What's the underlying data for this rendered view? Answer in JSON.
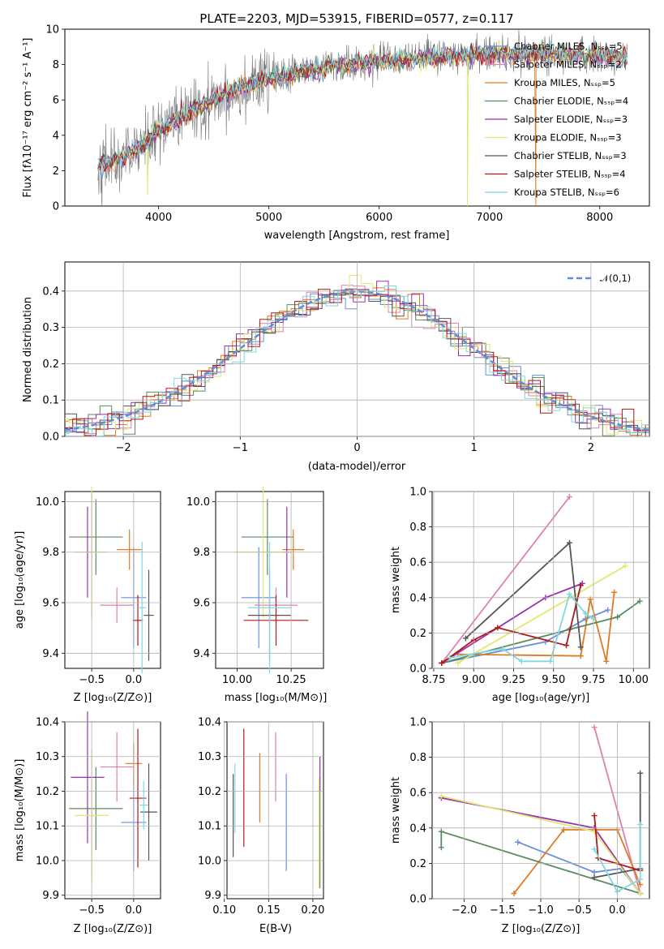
{
  "figure": {
    "title": "PLATE=2203, MJD=53915, FIBERID=0577, z=0.117"
  },
  "model_colors": {
    "Chabrier MILES": "#6a8fd8",
    "Salpeter MILES": "#e080b0",
    "Kroupa MILES": "#e07a20",
    "Chabrier ELODIE": "#5a8a60",
    "Salpeter ELODIE": "#9a30b0",
    "Kroupa ELODIE": "#e0e870",
    "Chabrier STELIB": "#555555",
    "Salpeter STELIB": "#b01818",
    "Kroupa STELIB": "#80d8e0"
  },
  "chart_data": [
    {
      "id": "spectrum",
      "type": "line",
      "title": "PLATE=2203, MJD=53915, FIBERID=0577, z=0.117",
      "xlabel": "wavelength [Angstrom, rest frame]",
      "ylabel": "Flux [fλ10⁻¹⁷ erg cm⁻² s⁻¹ A⁻¹]",
      "xlim": [
        3150,
        8450
      ],
      "ylim": [
        0,
        10
      ],
      "xticks": [
        4000,
        5000,
        6000,
        7000,
        8000
      ],
      "yticks": [
        0,
        2,
        4,
        6,
        8,
        10
      ],
      "legend_position": "top-right",
      "legend": [
        "Chabrier MILES, Nₛₛₚ=5",
        "Salpeter MILES, Nₛₛₚ=2",
        "Kroupa MILES, Nₛₛₚ=5",
        "Chabrier ELODIE, Nₛₛₚ=4",
        "Salpeter ELODIE, Nₛₛₚ=3",
        "Kroupa ELODIE, Nₛₛₚ=3",
        "Chabrier STELIB, Nₛₛₚ=3",
        "Salpeter STELIB, Nₛₛₚ=4",
        "Kroupa STELIB, Nₛₛₚ=6"
      ],
      "legend_models": [
        "Chabrier MILES",
        "Salpeter MILES",
        "Kroupa MILES",
        "Chabrier ELODIE",
        "Salpeter ELODIE",
        "Kroupa ELODIE",
        "Chabrier STELIB",
        "Salpeter STELIB",
        "Kroupa STELIB"
      ],
      "wavelength_range": [
        3450,
        8250
      ],
      "continuum": {
        "wavelength": [
          3450,
          3700,
          3900,
          4000,
          4200,
          4500,
          4800,
          5000,
          5300,
          5600,
          6000,
          6500,
          7000,
          7500,
          8000,
          8250
        ],
        "flux": [
          2.3,
          2.8,
          3.6,
          4.2,
          5.0,
          6.0,
          6.8,
          7.2,
          7.6,
          7.9,
          8.2,
          8.4,
          8.6,
          8.6,
          8.5,
          8.4
        ]
      },
      "dips": [
        {
          "wavelength": 3900,
          "depth": 3.0,
          "model": "Kroupa ELODIE"
        },
        {
          "wavelength": 6800,
          "depth": 8.6,
          "model": "Kroupa ELODIE"
        },
        {
          "wavelength": 7420,
          "depth": 8.6,
          "model": "Kroupa MILES"
        }
      ]
    },
    {
      "id": "residuals",
      "type": "bar",
      "xlabel": "(data-model)/error",
      "ylabel": "Normed distribution",
      "xlim": [
        -2.5,
        2.5
      ],
      "ylim": [
        0,
        0.48
      ],
      "xticks": [
        -2,
        -1,
        0,
        1,
        2
      ],
      "yticks": [
        0.0,
        0.1,
        0.2,
        0.3,
        0.4
      ],
      "legend": "𝒩(0,1)",
      "legend_position": "top-right",
      "curve": {
        "type": "normal",
        "mean": 0,
        "sigma": 1,
        "color": "#5f8ed8"
      },
      "bin_width": 0.1,
      "histogram_models": [
        "Chabrier MILES",
        "Salpeter MILES",
        "Kroupa MILES",
        "Chabrier ELODIE",
        "Salpeter ELODIE",
        "Kroupa ELODIE",
        "Chabrier STELIB",
        "Salpeter STELIB",
        "Kroupa STELIB"
      ]
    },
    {
      "id": "age_vs_Z",
      "type": "scatter",
      "xlabel": "Z [log₁₀(Z/Z⊙)]",
      "ylabel": "age  [log₁₀(age/yr)]",
      "xlim": [
        -0.82,
        0.32
      ],
      "ylim": [
        9.34,
        10.04
      ],
      "xticks": [
        -0.5,
        0.0
      ],
      "xticklabels": [
        "−0.5",
        "0.0"
      ],
      "yticks": [
        9.4,
        9.6,
        9.8,
        10.0
      ],
      "points": [
        {
          "model": "Chabrier MILES",
          "x": 0.0,
          "xerr": 0.15,
          "y": 9.62,
          "yerr": 0.2
        },
        {
          "model": "Salpeter MILES",
          "x": -0.2,
          "xerr": 0.2,
          "y": 9.59,
          "yerr": 0.07
        },
        {
          "model": "Kroupa MILES",
          "x": -0.05,
          "xerr": 0.15,
          "y": 9.81,
          "yerr": 0.08
        },
        {
          "model": "Chabrier ELODIE",
          "x": -0.45,
          "xerr": 0.32,
          "y": 9.86,
          "yerr": 0.15
        },
        {
          "model": "Salpeter ELODIE",
          "x": -0.55,
          "xerr": 0.02,
          "y": 9.8,
          "yerr": 0.18
        },
        {
          "model": "Kroupa ELODIE",
          "x": -0.5,
          "xerr": 0.2,
          "y": 9.8,
          "yerr": 0.26
        },
        {
          "model": "Chabrier STELIB",
          "x": 0.18,
          "xerr": 0.06,
          "y": 9.55,
          "yerr": 0.18
        },
        {
          "model": "Salpeter STELIB",
          "x": 0.05,
          "xerr": 0.06,
          "y": 9.53,
          "yerr": 0.1
        },
        {
          "model": "Kroupa STELIB",
          "x": 0.1,
          "xerr": 0.05,
          "y": 9.58,
          "yerr": 0.26
        }
      ]
    },
    {
      "id": "age_vs_mass",
      "type": "scatter",
      "xlabel": "mass [log₁₀(M/M⊙)]",
      "ylabel": "",
      "xlim": [
        9.9,
        10.4
      ],
      "ylim": [
        9.34,
        10.04
      ],
      "xticks": [
        10.0,
        10.25
      ],
      "xticklabels": [
        "10.00",
        "10.25"
      ],
      "yticks": [
        9.4,
        9.6,
        9.8,
        10.0
      ],
      "points": [
        {
          "model": "Chabrier MILES",
          "x": 10.1,
          "xerr": 0.08,
          "y": 9.62,
          "yerr": 0.2
        },
        {
          "model": "Salpeter MILES",
          "x": 10.18,
          "xerr": 0.1,
          "y": 9.59,
          "yerr": 0.07
        },
        {
          "model": "Kroupa MILES",
          "x": 10.26,
          "xerr": 0.05,
          "y": 9.81,
          "yerr": 0.08
        },
        {
          "model": "Chabrier ELODIE",
          "x": 10.14,
          "xerr": 0.12,
          "y": 9.86,
          "yerr": 0.15
        },
        {
          "model": "Salpeter ELODIE",
          "x": 10.23,
          "xerr": 0.02,
          "y": 9.8,
          "yerr": 0.18
        },
        {
          "model": "Kroupa ELODIE",
          "x": 10.12,
          "xerr": 0.13,
          "y": 9.8,
          "yerr": 0.26
        },
        {
          "model": "Chabrier STELIB",
          "x": 10.15,
          "xerr": 0.1,
          "y": 9.55,
          "yerr": 0.18
        },
        {
          "model": "Salpeter STELIB",
          "x": 10.18,
          "xerr": 0.15,
          "y": 9.53,
          "yerr": 0.1
        },
        {
          "model": "Kroupa STELIB",
          "x": 10.15,
          "xerr": 0.1,
          "y": 9.58,
          "yerr": 0.26
        }
      ]
    },
    {
      "id": "weight_vs_age",
      "type": "line",
      "xlabel": "age  [log₁₀(age/yr)]",
      "ylabel": "mass weight",
      "xlim": [
        8.74,
        10.1
      ],
      "ylim": [
        0,
        1.0
      ],
      "xticks": [
        8.75,
        9.0,
        9.25,
        9.5,
        9.75,
        10.0
      ],
      "xticklabels": [
        "8.75",
        "9.00",
        "9.25",
        "9.50",
        "9.75",
        "10.00"
      ],
      "yticks": [
        0.0,
        0.2,
        0.4,
        0.6,
        0.8,
        1.0
      ],
      "series": [
        {
          "model": "Chabrier MILES",
          "x": [
            8.8,
            9.45,
            9.7,
            9.84
          ],
          "y": [
            0.03,
            0.15,
            0.28,
            0.33
          ]
        },
        {
          "model": "Salpeter MILES",
          "x": [
            8.8,
            9.6
          ],
          "y": [
            0.03,
            0.97
          ]
        },
        {
          "model": "Kroupa MILES",
          "x": [
            8.9,
            9.67,
            9.73,
            9.83,
            9.88
          ],
          "y": [
            0.08,
            0.07,
            0.39,
            0.04,
            0.43
          ]
        },
        {
          "model": "Chabrier ELODIE",
          "x": [
            8.8,
            9.6,
            9.9,
            10.04
          ],
          "y": [
            0.03,
            0.22,
            0.29,
            0.38
          ]
        },
        {
          "model": "Salpeter ELODIE",
          "x": [
            8.8,
            9.45,
            9.68
          ],
          "y": [
            0.03,
            0.4,
            0.48
          ]
        },
        {
          "model": "Kroupa ELODIE",
          "x": [
            8.9,
            9.95
          ],
          "y": [
            0.03,
            0.58
          ]
        },
        {
          "model": "Chabrier STELIB",
          "x": [
            8.95,
            9.6,
            9.67
          ],
          "y": [
            0.17,
            0.71,
            0.12
          ]
        },
        {
          "model": "Salpeter STELIB",
          "x": [
            8.8,
            9.0,
            9.15,
            9.58,
            9.67
          ],
          "y": [
            0.03,
            0.16,
            0.23,
            0.13,
            0.47
          ]
        },
        {
          "model": "Kroupa STELIB",
          "x": [
            8.85,
            9.18,
            9.3,
            9.48,
            9.6,
            9.7,
            9.75
          ],
          "y": [
            0.06,
            0.11,
            0.04,
            0.04,
            0.42,
            0.31,
            0.28
          ]
        }
      ]
    },
    {
      "id": "mass_vs_Z",
      "type": "scatter",
      "xlabel": "Z [log₁₀(Z/Z⊙)]",
      "ylabel": "mass [log₁₀(M/M⊙)]",
      "xlim": [
        -0.82,
        0.32
      ],
      "ylim": [
        9.89,
        10.4
      ],
      "xticks": [
        -0.5,
        0.0
      ],
      "xticklabels": [
        "−0.5",
        "0.0"
      ],
      "yticks": [
        9.9,
        10.0,
        10.1,
        10.2,
        10.3,
        10.4
      ],
      "points": [
        {
          "model": "Chabrier MILES",
          "x": 0.0,
          "xerr": 0.15,
          "y": 10.11,
          "yerr": 0.14
        },
        {
          "model": "Salpeter MILES",
          "x": -0.2,
          "xerr": 0.2,
          "y": 10.27,
          "yerr": 0.1
        },
        {
          "model": "Kroupa MILES",
          "x": 0.0,
          "xerr": 0.1,
          "y": 10.28,
          "yerr": 0.06
        },
        {
          "model": "Chabrier ELODIE",
          "x": -0.45,
          "xerr": 0.32,
          "y": 10.15,
          "yerr": 0.12
        },
        {
          "model": "Salpeter ELODIE",
          "x": -0.55,
          "xerr": 0.2,
          "y": 10.24,
          "yerr": 0.19
        },
        {
          "model": "Kroupa ELODIE",
          "x": -0.5,
          "xerr": 0.2,
          "y": 10.13,
          "yerr": 0.19
        },
        {
          "model": "Chabrier STELIB",
          "x": 0.18,
          "xerr": 0.1,
          "y": 10.14,
          "yerr": 0.14
        },
        {
          "model": "Salpeter STELIB",
          "x": 0.05,
          "xerr": 0.1,
          "y": 10.18,
          "yerr": 0.2
        },
        {
          "model": "Kroupa STELIB",
          "x": 0.12,
          "xerr": 0.05,
          "y": 10.16,
          "yerr": 0.07
        }
      ]
    },
    {
      "id": "mass_vs_EBV",
      "type": "scatter",
      "xlabel": "E(B-V)",
      "ylabel": "",
      "xlim": [
        0.103,
        0.212
      ],
      "ylim": [
        9.89,
        10.4
      ],
      "xticks": [
        0.1,
        0.15,
        0.2
      ],
      "xticklabels": [
        "0.10",
        "0.15",
        "0.20"
      ],
      "yticks": [
        9.9,
        10.0,
        10.1,
        10.2,
        10.3,
        10.4
      ],
      "points": [
        {
          "model": "Chabrier MILES",
          "x": 0.17,
          "y": 10.11,
          "yerr": 0.14
        },
        {
          "model": "Salpeter MILES",
          "x": 0.158,
          "y": 10.27,
          "yerr": 0.1
        },
        {
          "model": "Kroupa MILES",
          "x": 0.14,
          "y": 10.21,
          "yerr": 0.1
        },
        {
          "model": "Chabrier ELODIE",
          "x": 0.208,
          "y": 10.08,
          "yerr": 0.16
        },
        {
          "model": "Salpeter ELODIE",
          "x": 0.208,
          "y": 10.25,
          "yerr": 0.05
        },
        {
          "model": "Kroupa ELODIE",
          "x": 0.207,
          "y": 10.08,
          "yerr": 0.16
        },
        {
          "model": "Chabrier STELIB",
          "x": 0.11,
          "y": 10.13,
          "yerr": 0.12
        },
        {
          "model": "Salpeter STELIB",
          "x": 0.122,
          "y": 10.21,
          "yerr": 0.17
        },
        {
          "model": "Kroupa STELIB",
          "x": 0.112,
          "y": 10.18,
          "yerr": 0.1
        }
      ]
    },
    {
      "id": "weight_vs_Z",
      "type": "line",
      "xlabel": "Z [log₁₀(Z/Z⊙)]",
      "ylabel": "mass weight",
      "xlim": [
        -2.42,
        0.42
      ],
      "ylim": [
        0,
        1.0
      ],
      "xticks": [
        -2.0,
        -1.5,
        -1.0,
        -0.5,
        0.0
      ],
      "xticklabels": [
        "−2.0",
        "−1.5",
        "−1.0",
        "−0.5",
        "0.0"
      ],
      "yticks": [
        0.0,
        0.2,
        0.4,
        0.6,
        0.8,
        1.0
      ],
      "series": [
        {
          "model": "Chabrier MILES",
          "x": [
            -1.3,
            -0.3,
            0.05,
            0.3
          ],
          "y": [
            0.32,
            0.15,
            0.17,
            0.03
          ]
        },
        {
          "model": "Salpeter MILES",
          "x": [
            -0.3,
            0.3
          ],
          "y": [
            0.97,
            0.03
          ]
        },
        {
          "model": "Kroupa MILES",
          "x": [
            -1.35,
            -0.7,
            0.0,
            0.3
          ],
          "y": [
            0.03,
            0.39,
            0.39,
            0.08
          ]
        },
        {
          "model": "Chabrier ELODIE",
          "x": [
            -2.3,
            -2.3,
            0.3
          ],
          "y": [
            0.29,
            0.38,
            0.03
          ]
        },
        {
          "model": "Salpeter ELODIE",
          "x": [
            -2.3,
            -0.3,
            0.3
          ],
          "y": [
            0.57,
            0.4,
            0.03
          ]
        },
        {
          "model": "Kroupa ELODIE",
          "x": [
            -2.3,
            -0.3,
            0.3
          ],
          "y": [
            0.58,
            0.38,
            0.03
          ]
        },
        {
          "model": "Chabrier STELIB",
          "x": [
            -0.3,
            0.3,
            0.3
          ],
          "y": [
            0.12,
            0.17,
            0.71
          ]
        },
        {
          "model": "Salpeter STELIB",
          "x": [
            -0.3,
            -0.25,
            0.3
          ],
          "y": [
            0.47,
            0.23,
            0.16
          ]
        },
        {
          "model": "Kroupa STELIB",
          "x": [
            -0.3,
            0.0,
            0.3,
            0.3
          ],
          "y": [
            0.28,
            0.04,
            0.11,
            0.42
          ]
        }
      ]
    }
  ]
}
